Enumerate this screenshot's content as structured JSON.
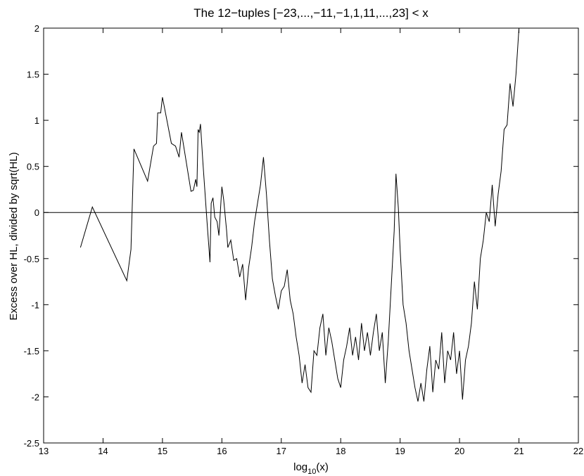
{
  "chart_data": {
    "type": "line",
    "title": "The 12−tuples [−23,...,−11,−1,1,11,...,23]  < x",
    "xlabel": [
      "log",
      "10",
      "(x)"
    ],
    "ylabel": "Excess over HL, divided by sqrt(HL)",
    "xlim": [
      13,
      22
    ],
    "xticks": [
      13,
      14,
      15,
      16,
      17,
      18,
      19,
      20,
      21,
      22
    ],
    "ylim": [
      -2.5,
      2
    ],
    "yticks": [
      {
        "value": -2.5,
        "label": "-2.5"
      },
      {
        "value": -2,
        "label": "-2"
      },
      {
        "value": -1.5,
        "label": "-1.5"
      },
      {
        "value": -1,
        "label": "-1"
      },
      {
        "value": -0.5,
        "label": "-0.5"
      },
      0,
      0.5,
      1,
      1.5,
      2
    ],
    "hline": 0,
    "color": "#000000",
    "x": [
      13.62,
      13.82,
      14.4,
      14.47,
      14.52,
      14.75,
      14.85,
      14.9,
      14.92,
      14.97,
      15.0,
      15.15,
      15.22,
      15.28,
      15.32,
      15.48,
      15.52,
      15.56,
      15.58,
      15.6,
      15.62,
      15.64,
      15.68,
      15.75,
      15.8,
      15.82,
      15.85,
      15.88,
      15.92,
      15.95,
      16.0,
      16.03,
      16.08,
      16.1,
      16.15,
      16.2,
      16.25,
      16.3,
      16.35,
      16.4,
      16.45,
      16.5,
      16.55,
      16.6,
      16.65,
      16.7,
      16.75,
      16.8,
      16.85,
      16.9,
      16.95,
      17.0,
      17.05,
      17.1,
      17.15,
      17.2,
      17.25,
      17.3,
      17.35,
      17.4,
      17.45,
      17.5,
      17.55,
      17.6,
      17.65,
      17.7,
      17.75,
      17.8,
      17.85,
      17.9,
      17.95,
      18.0,
      18.05,
      18.1,
      18.15,
      18.2,
      18.25,
      18.3,
      18.35,
      18.4,
      18.45,
      18.5,
      18.55,
      18.6,
      18.65,
      18.7,
      18.75,
      18.8,
      18.85,
      18.9,
      18.93,
      18.97,
      19.0,
      19.05,
      19.1,
      19.15,
      19.2,
      19.25,
      19.3,
      19.35,
      19.4,
      19.45,
      19.5,
      19.55,
      19.6,
      19.65,
      19.7,
      19.75,
      19.8,
      19.85,
      19.9,
      19.95,
      20.0,
      20.05,
      20.1,
      20.15,
      20.2,
      20.25,
      20.3,
      20.35,
      20.4,
      20.45,
      20.5,
      20.55,
      20.6,
      20.65,
      20.7,
      20.75,
      20.8,
      20.85,
      20.9,
      20.95,
      21.0
    ],
    "values": [
      -0.38,
      0.06,
      -0.74,
      -0.4,
      0.69,
      0.34,
      0.72,
      0.75,
      1.08,
      1.08,
      1.25,
      0.75,
      0.72,
      0.6,
      0.87,
      0.23,
      0.24,
      0.36,
      0.28,
      0.9,
      0.87,
      0.96,
      0.55,
      -0.1,
      -0.54,
      0.1,
      0.16,
      -0.05,
      -0.1,
      -0.25,
      0.28,
      0.14,
      -0.2,
      -0.38,
      -0.3,
      -0.52,
      -0.5,
      -0.7,
      -0.56,
      -0.95,
      -0.6,
      -0.38,
      -0.1,
      0.1,
      0.3,
      0.6,
      0.2,
      -0.3,
      -0.72,
      -0.9,
      -1.05,
      -0.85,
      -0.8,
      -0.62,
      -0.95,
      -1.1,
      -1.35,
      -1.55,
      -1.85,
      -1.65,
      -1.9,
      -1.95,
      -1.5,
      -1.55,
      -1.25,
      -1.1,
      -1.55,
      -1.25,
      -1.4,
      -1.6,
      -1.8,
      -1.9,
      -1.6,
      -1.45,
      -1.25,
      -1.55,
      -1.35,
      -1.6,
      -1.2,
      -1.5,
      -1.3,
      -1.55,
      -1.3,
      -1.1,
      -1.5,
      -1.3,
      -1.85,
      -1.4,
      -0.8,
      -0.2,
      0.42,
      0.05,
      -0.4,
      -1.0,
      -1.2,
      -1.5,
      -1.7,
      -1.9,
      -2.05,
      -1.85,
      -2.05,
      -1.7,
      -1.45,
      -1.95,
      -1.6,
      -1.7,
      -1.3,
      -1.85,
      -1.5,
      -1.6,
      -1.3,
      -1.75,
      -1.5,
      -2.03,
      -1.6,
      -1.45,
      -1.2,
      -0.75,
      -1.05,
      -0.5,
      -0.3,
      0.0,
      -0.1,
      0.3,
      -0.15,
      0.2,
      0.45,
      0.9,
      0.95,
      1.4,
      1.15,
      1.5,
      2.0
    ]
  }
}
